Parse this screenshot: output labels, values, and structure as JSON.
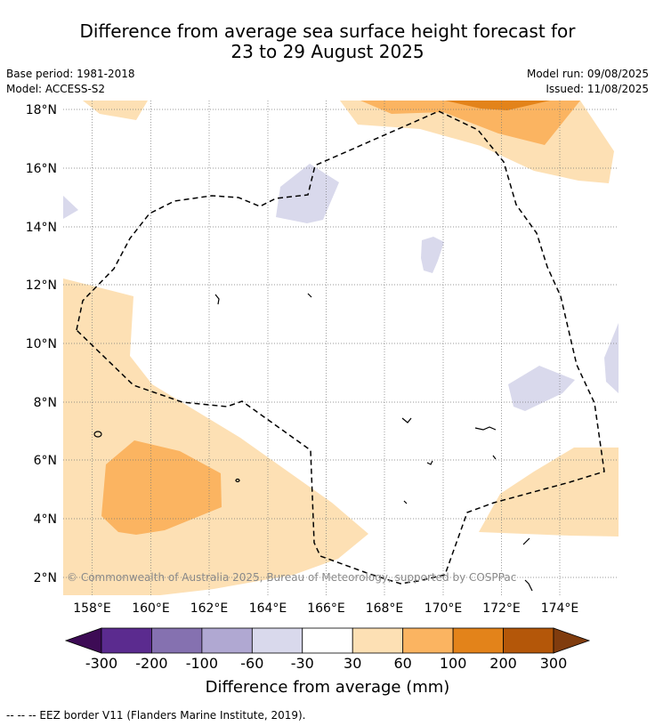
{
  "title_line1": "Difference from average sea surface height forecast for",
  "title_line2": "23 to 29 August 2025",
  "base_period": "Base period: 1981-2018",
  "model": "Model: ACCESS-S2",
  "model_run": "Model run: 09/08/2025",
  "issued": "Issued: 11/08/2025",
  "copyright": "© Commonwealth of Australia 2025, Bureau of Meteorology, supported by COSPPac",
  "lon_ticks": [
    "158°E",
    "160°E",
    "162°E",
    "164°E",
    "166°E",
    "168°E",
    "170°E",
    "172°E",
    "174°E"
  ],
  "lat_ticks": [
    "18°N",
    "16°N",
    "14°N",
    "12°N",
    "10°N",
    "8°N",
    "6°N",
    "4°N",
    "2°N"
  ],
  "colorbar": {
    "title": "Difference from average (mm)",
    "ticks": [
      "-300",
      "-200",
      "-100",
      "-60",
      "-30",
      "30",
      "60",
      "100",
      "200",
      "300"
    ],
    "colors": [
      "#3d0b55",
      "#5b2b8f",
      "#8571b0",
      "#b0a8d2",
      "#d9d9ec",
      "#ffffff",
      "#fde0b4",
      "#fbb461",
      "#e3831a",
      "#b45709",
      "#803c0e"
    ]
  },
  "footnote": "--  --  -- EEZ border V11 (Flanders Marine Institute, 2019)."
}
